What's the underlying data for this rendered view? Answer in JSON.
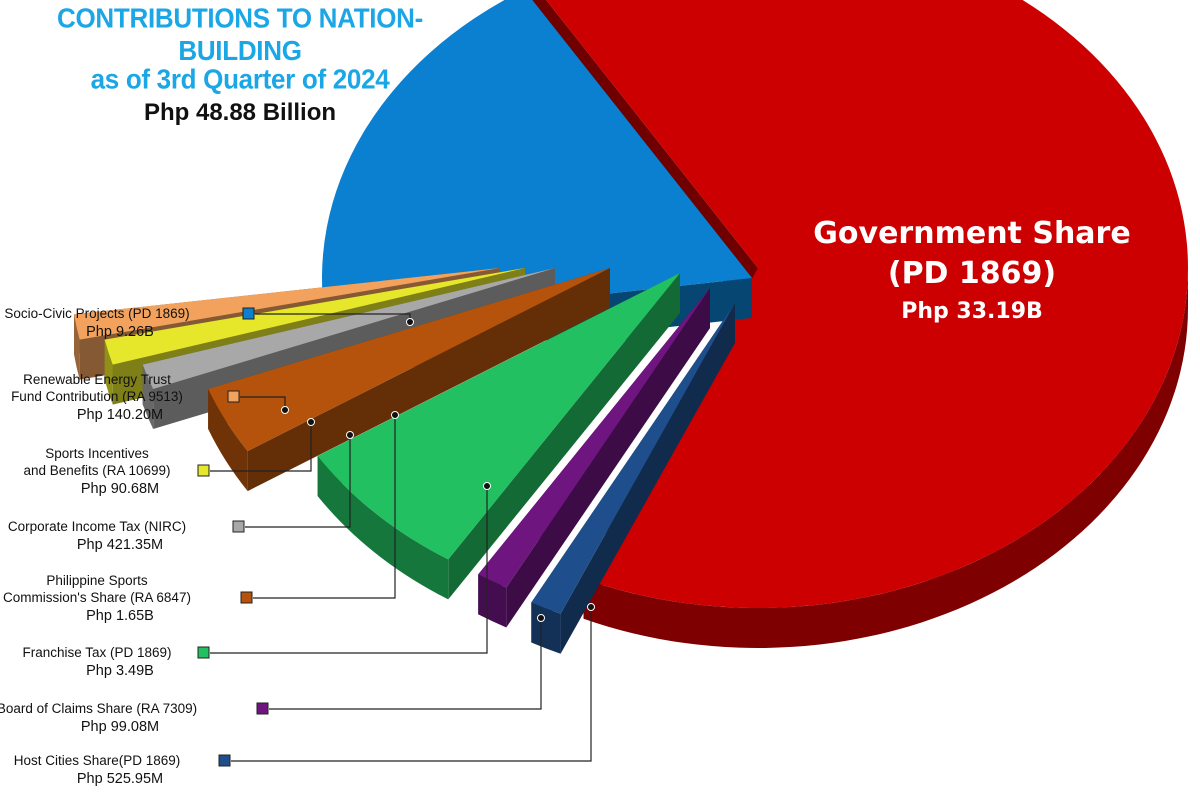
{
  "header": {
    "title_line1": "CONTRIBUTIONS TO NATION-BUILDING",
    "title_line2": "as of 3rd Quarter of 2024",
    "subtitle": "Php 48.88 Billion"
  },
  "chart_data": {
    "type": "pie",
    "title": "CONTRIBUTIONS TO NATION-BUILDING as of 3rd Quarter of 2024",
    "subtitle": "Php 48.88 Billion",
    "slices": [
      {
        "label": "Government Share (PD 1869)",
        "label_lines": [
          "Government Share",
          "(PD 1869)"
        ],
        "value_text": "Php 33.19B",
        "value": 33.19,
        "color": "#cc0000"
      },
      {
        "label": "Host Cities Share(PD 1869)",
        "label_lines": [
          "Host Cities Share(PD 1869)"
        ],
        "value_text": "Php 525.95M",
        "value": 0.526,
        "color": "#1e4f8c"
      },
      {
        "label": "Board of Claims Share (RA 7309)",
        "label_lines": [
          "Board of Claims Share (RA 7309)"
        ],
        "value_text": "Php 99.08M",
        "value": 0.099,
        "color": "#6e1580"
      },
      {
        "label": "Franchise Tax (PD 1869)",
        "label_lines": [
          "Franchise Tax (PD 1869)"
        ],
        "value_text": "Php 3.49B",
        "value": 3.49,
        "color": "#22c060"
      },
      {
        "label": "Philippine Sports Commission's Share (RA 6847)",
        "label_lines": [
          "Philippine Sports",
          "Commission's Share (RA 6847)"
        ],
        "value_text": "Php 1.65B",
        "value": 1.65,
        "color": "#b5530c"
      },
      {
        "label": "Corporate Income Tax (NIRC)",
        "label_lines": [
          "Corporate Income Tax (NIRC)"
        ],
        "value_text": "Php 421.35M",
        "value": 0.421,
        "color": "#a8a8a8"
      },
      {
        "label": "Sports Incentives and Benefits (RA 10699)",
        "label_lines": [
          "Sports Incentives",
          "and Benefits (RA 10699)"
        ],
        "value_text": "Php 90.68M",
        "value": 0.091,
        "color": "#e6e62a"
      },
      {
        "label": "Renewable Energy Trust Fund Contribution (RA 9513)",
        "label_lines": [
          "Renewable Energy Trust",
          "Fund Contribution (RA 9513)"
        ],
        "value_text": "Php 140.20M",
        "value": 0.14,
        "color": "#f2a25c"
      },
      {
        "label": "Socio-Civic Projects (PD 1869)",
        "label_lines": [
          "Socio-Civic Projects (PD 1869)"
        ],
        "value_text": "Php 9.26B",
        "value": 9.26,
        "color": "#0b7fd0"
      }
    ],
    "legend_placement": "left"
  }
}
